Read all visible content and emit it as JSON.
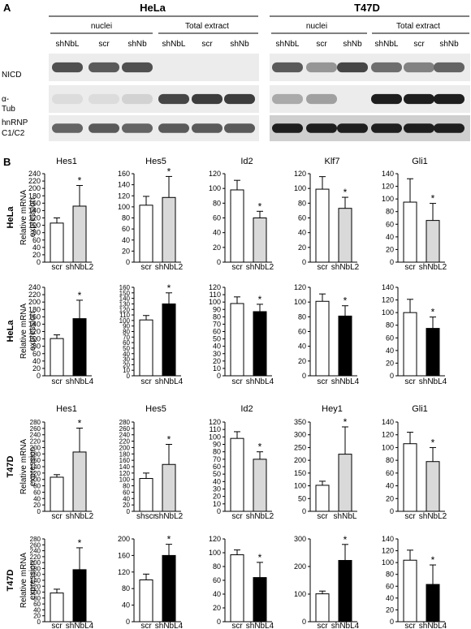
{
  "panel_a": {
    "label": "A",
    "cell_lines": [
      {
        "name": "HeLa",
        "groups": [
          "nuclei",
          "Total extract"
        ],
        "lanes": [
          "shNbL",
          "scr",
          "shNb",
          "shNbL",
          "scr",
          "shNb"
        ]
      },
      {
        "name": "T47D",
        "groups": [
          "nuclei",
          "Total extract"
        ],
        "lanes": [
          "shNbL",
          "scr",
          "shNb",
          "shNbL",
          "scr",
          "shNb"
        ]
      }
    ],
    "blot_labels": [
      "NICD",
      "α-\nTub",
      "hnRNP\nC1/C2"
    ]
  },
  "panel_b": {
    "label": "B",
    "ylabel": "Relative mRNA\nexpression"
  },
  "chart_data": [
    {
      "row": 0,
      "col": 0,
      "row_label": "HeLa",
      "type": "bar",
      "title": "Hes1",
      "ylim": [
        0,
        240
      ],
      "ticks": [
        0,
        20,
        40,
        60,
        80,
        100,
        120,
        140,
        160,
        180,
        200,
        220,
        240
      ],
      "categories": [
        "scr",
        "shNbL2"
      ],
      "values": [
        106,
        152
      ],
      "errors": [
        14,
        56
      ],
      "fills": [
        "#ffffff",
        "#d9d9d9"
      ],
      "significance": [
        "",
        "*"
      ]
    },
    {
      "row": 0,
      "col": 1,
      "row_label": "HeLa",
      "type": "bar",
      "title": "Hes5",
      "ylim": [
        0,
        160
      ],
      "ticks": [
        0,
        20,
        40,
        60,
        80,
        100,
        120,
        140,
        160
      ],
      "categories": [
        "scr",
        "shNbL2"
      ],
      "values": [
        103,
        117
      ],
      "errors": [
        16,
        38
      ],
      "fills": [
        "#ffffff",
        "#d9d9d9"
      ],
      "significance": [
        "",
        "*"
      ]
    },
    {
      "row": 0,
      "col": 2,
      "row_label": "HeLa",
      "type": "bar",
      "title": "Id2",
      "ylim": [
        0,
        120
      ],
      "ticks": [
        0,
        20,
        40,
        60,
        80,
        100,
        120
      ],
      "categories": [
        "scr",
        "shNbL2"
      ],
      "values": [
        98,
        60
      ],
      "errors": [
        13,
        9
      ],
      "fills": [
        "#ffffff",
        "#d9d9d9"
      ],
      "significance": [
        "",
        "*"
      ]
    },
    {
      "row": 0,
      "col": 3,
      "row_label": "HeLa",
      "type": "bar",
      "title": "Klf7",
      "ylim": [
        0,
        120
      ],
      "ticks": [
        0,
        20,
        40,
        60,
        80,
        100,
        120
      ],
      "categories": [
        "scr",
        "shNbL2"
      ],
      "values": [
        99,
        73
      ],
      "errors": [
        17,
        15
      ],
      "fills": [
        "#ffffff",
        "#d9d9d9"
      ],
      "significance": [
        "",
        "*"
      ]
    },
    {
      "row": 0,
      "col": 4,
      "row_label": "HeLa",
      "type": "bar",
      "title": "Gli1",
      "ylim": [
        0,
        140
      ],
      "ticks": [
        0,
        20,
        40,
        60,
        80,
        100,
        120,
        140
      ],
      "categories": [
        "scr",
        "shNbL2"
      ],
      "values": [
        95,
        66
      ],
      "errors": [
        37,
        27
      ],
      "fills": [
        "#ffffff",
        "#d9d9d9"
      ],
      "significance": [
        "",
        "*"
      ]
    },
    {
      "row": 1,
      "col": 0,
      "row_label": "HeLa",
      "type": "bar",
      "title": "",
      "ylim": [
        0,
        240
      ],
      "ticks": [
        0,
        20,
        40,
        60,
        80,
        100,
        120,
        140,
        160,
        180,
        200,
        220,
        240
      ],
      "categories": [
        "scr",
        "shNbL4"
      ],
      "values": [
        101,
        155
      ],
      "errors": [
        10,
        50
      ],
      "fills": [
        "#ffffff",
        "#000000"
      ],
      "significance": [
        "",
        "*"
      ]
    },
    {
      "row": 1,
      "col": 1,
      "row_label": "HeLa",
      "type": "bar",
      "title": "",
      "ylim": [
        0,
        160
      ],
      "ticks": [
        0,
        10,
        20,
        30,
        40,
        50,
        60,
        70,
        80,
        90,
        100,
        110,
        120,
        130,
        140,
        150,
        160
      ],
      "categories": [
        "scr",
        "shNbL4"
      ],
      "values": [
        101,
        130
      ],
      "errors": [
        8,
        20
      ],
      "fills": [
        "#ffffff",
        "#000000"
      ],
      "significance": [
        "",
        "*"
      ]
    },
    {
      "row": 1,
      "col": 2,
      "row_label": "HeLa",
      "type": "bar",
      "title": "",
      "ylim": [
        0,
        120
      ],
      "ticks": [
        0,
        10,
        20,
        30,
        40,
        50,
        60,
        70,
        80,
        90,
        100,
        110,
        120
      ],
      "categories": [
        "scr",
        "shNbL4"
      ],
      "values": [
        98,
        87
      ],
      "errors": [
        9,
        10
      ],
      "fills": [
        "#ffffff",
        "#000000"
      ],
      "significance": [
        "",
        "*"
      ]
    },
    {
      "row": 1,
      "col": 3,
      "row_label": "HeLa",
      "type": "bar",
      "title": "",
      "ylim": [
        0,
        120
      ],
      "ticks": [
        0,
        20,
        40,
        60,
        80,
        100,
        120
      ],
      "categories": [
        "scr",
        "shNbL4"
      ],
      "values": [
        101,
        81
      ],
      "errors": [
        10,
        14
      ],
      "fills": [
        "#ffffff",
        "#000000"
      ],
      "significance": [
        "",
        "*"
      ]
    },
    {
      "row": 1,
      "col": 4,
      "row_label": "HeLa",
      "type": "bar",
      "title": "",
      "ylim": [
        0,
        140
      ],
      "ticks": [
        0,
        20,
        40,
        60,
        80,
        100,
        120,
        140
      ],
      "categories": [
        "scr",
        "shNbL4"
      ],
      "values": [
        100,
        75
      ],
      "errors": [
        21,
        18
      ],
      "fills": [
        "#ffffff",
        "#000000"
      ],
      "significance": [
        "",
        "*"
      ]
    },
    {
      "row": 2,
      "col": 0,
      "row_label": "T47D",
      "type": "bar",
      "title": "Hes1",
      "ylim": [
        0,
        280
      ],
      "ticks": [
        0,
        20,
        40,
        60,
        80,
        100,
        120,
        140,
        160,
        180,
        200,
        220,
        240,
        260,
        280
      ],
      "categories": [
        "scr",
        "shNbL2"
      ],
      "values": [
        107,
        186
      ],
      "errors": [
        8,
        75
      ],
      "fills": [
        "#ffffff",
        "#d9d9d9"
      ],
      "significance": [
        "",
        "*"
      ]
    },
    {
      "row": 2,
      "col": 1,
      "row_label": "T47D",
      "type": "bar",
      "title": "Hes5",
      "ylim": [
        0,
        280
      ],
      "ticks": [
        0,
        20,
        40,
        60,
        80,
        100,
        120,
        140,
        160,
        180,
        200,
        220,
        240,
        260,
        280
      ],
      "categories": [
        "shscr",
        "shNbL2"
      ],
      "values": [
        103,
        147
      ],
      "errors": [
        17,
        63
      ],
      "fills": [
        "#ffffff",
        "#d9d9d9"
      ],
      "significance": [
        "",
        "*"
      ]
    },
    {
      "row": 2,
      "col": 2,
      "row_label": "T47D",
      "type": "bar",
      "title": "Id2",
      "ylim": [
        0,
        120
      ],
      "ticks": [
        0,
        10,
        20,
        30,
        40,
        50,
        60,
        70,
        80,
        90,
        100,
        110,
        120
      ],
      "categories": [
        "scr",
        "shNbL2"
      ],
      "values": [
        98,
        70
      ],
      "errors": [
        9,
        10
      ],
      "fills": [
        "#ffffff",
        "#d9d9d9"
      ],
      "significance": [
        "",
        "*"
      ]
    },
    {
      "row": 2,
      "col": 3,
      "row_label": "T47D",
      "type": "bar",
      "title": "Hey1",
      "ylim": [
        0,
        350
      ],
      "ticks": [
        0,
        50,
        100,
        150,
        200,
        250,
        300,
        350
      ],
      "categories": [
        "scr",
        "shNbL"
      ],
      "values": [
        102,
        224
      ],
      "errors": [
        16,
        107
      ],
      "fills": [
        "#ffffff",
        "#d9d9d9"
      ],
      "significance": [
        "",
        "*"
      ]
    },
    {
      "row": 2,
      "col": 4,
      "row_label": "T47D",
      "type": "bar",
      "title": "Gli1",
      "ylim": [
        0,
        140
      ],
      "ticks": [
        0,
        20,
        40,
        60,
        80,
        100,
        120,
        140
      ],
      "categories": [
        "scr",
        "shNbL2"
      ],
      "values": [
        106,
        78
      ],
      "errors": [
        18,
        22
      ],
      "fills": [
        "#ffffff",
        "#d9d9d9"
      ],
      "significance": [
        "",
        "*"
      ]
    },
    {
      "row": 3,
      "col": 0,
      "row_label": "T47D",
      "type": "bar",
      "title": "",
      "ylim": [
        0,
        280
      ],
      "ticks": [
        0,
        20,
        40,
        60,
        80,
        100,
        120,
        140,
        160,
        180,
        200,
        220,
        240,
        260,
        280
      ],
      "categories": [
        "scr",
        "shNbL4"
      ],
      "values": [
        97,
        176
      ],
      "errors": [
        13,
        74
      ],
      "fills": [
        "#ffffff",
        "#000000"
      ],
      "significance": [
        "",
        "*"
      ]
    },
    {
      "row": 3,
      "col": 1,
      "row_label": "T47D",
      "type": "bar",
      "title": "",
      "ylim": [
        0,
        200
      ],
      "ticks": [
        0,
        40,
        80,
        120,
        160,
        200
      ],
      "categories": [
        "scr",
        "shNbL4"
      ],
      "values": [
        101,
        160
      ],
      "errors": [
        14,
        27
      ],
      "fills": [
        "#ffffff",
        "#000000"
      ],
      "significance": [
        "",
        "*"
      ]
    },
    {
      "row": 3,
      "col": 2,
      "row_label": "T47D",
      "type": "bar",
      "title": "",
      "ylim": [
        0,
        120
      ],
      "ticks": [
        0,
        20,
        40,
        60,
        80,
        100,
        120
      ],
      "categories": [
        "scr",
        "shNbL4"
      ],
      "values": [
        97,
        64
      ],
      "errors": [
        7,
        22
      ],
      "fills": [
        "#ffffff",
        "#000000"
      ],
      "significance": [
        "",
        "*"
      ]
    },
    {
      "row": 3,
      "col": 3,
      "row_label": "T47D",
      "type": "bar",
      "title": "",
      "ylim": [
        0,
        300
      ],
      "ticks": [
        0,
        100,
        200,
        300
      ],
      "categories": [
        "scr",
        "shNbL4"
      ],
      "values": [
        101,
        222
      ],
      "errors": [
        10,
        58
      ],
      "fills": [
        "#ffffff",
        "#000000"
      ],
      "significance": [
        "",
        "*"
      ]
    },
    {
      "row": 3,
      "col": 4,
      "row_label": "T47D",
      "type": "bar",
      "title": "",
      "ylim": [
        0,
        140
      ],
      "ticks": [
        0,
        20,
        40,
        60,
        80,
        100,
        120,
        140
      ],
      "categories": [
        "scr",
        "shNbL4"
      ],
      "values": [
        104,
        63
      ],
      "errors": [
        17,
        33
      ],
      "fills": [
        "#ffffff",
        "#000000"
      ],
      "significance": [
        "",
        "*"
      ]
    }
  ]
}
